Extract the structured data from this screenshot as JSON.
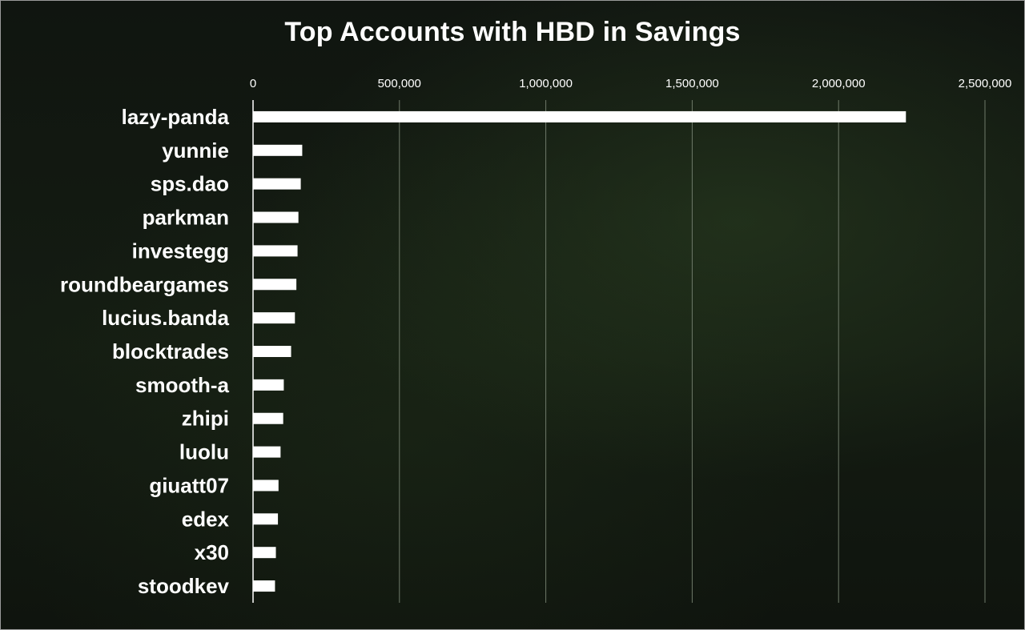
{
  "chart_data": {
    "type": "bar",
    "orientation": "horizontal",
    "title": "Top Accounts with HBD in Savings",
    "categories": [
      "lazy-panda",
      "yunnie",
      "sps.dao",
      "parkman",
      "investegg",
      "roundbeargames",
      "lucius.banda",
      "blocktrades",
      "smooth-a",
      "zhipi",
      "luolu",
      "giuatt07",
      "edex",
      "x30",
      "stoodkev"
    ],
    "values": [
      2230000,
      168000,
      163000,
      155000,
      152000,
      148000,
      143000,
      130000,
      105000,
      103000,
      94000,
      87000,
      85000,
      78000,
      75000
    ],
    "xlim": [
      0,
      2500000
    ],
    "xticks": [
      "0",
      "500,000",
      "1,000,000",
      "1,500,000",
      "2,000,000",
      "2,500,000"
    ],
    "grid": true,
    "legend": "none",
    "colors": {
      "bar": "#ffffff",
      "text": "#ffffff",
      "grid": "#6f7a6a"
    }
  }
}
